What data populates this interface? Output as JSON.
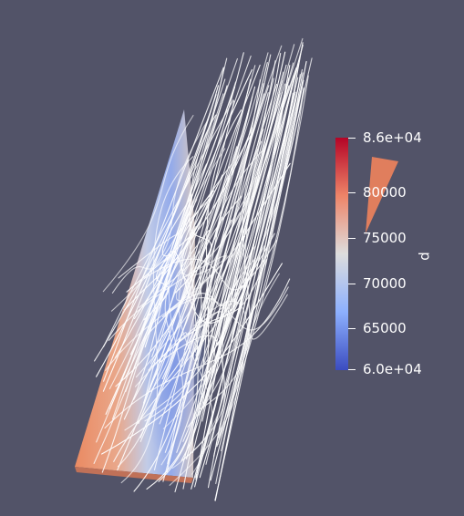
{
  "scalar_bar": {
    "title": "p",
    "top_label": "8.6e+04",
    "labels": [
      "80000",
      "75000",
      "70000",
      "65000"
    ],
    "bottom_label": "6.0e+04",
    "min": 60000,
    "max": 86000,
    "colors": {
      "high": "#b40426",
      "mid": "#dddddd",
      "low": "#3b4cc0"
    }
  },
  "scene": {
    "background": "#525368",
    "streamline_color": "#ffffff",
    "surface_colors": {
      "edge": "#e7835f",
      "center": "#6f8fe6"
    },
    "orientation_glyph_color": "#e07e5d"
  }
}
